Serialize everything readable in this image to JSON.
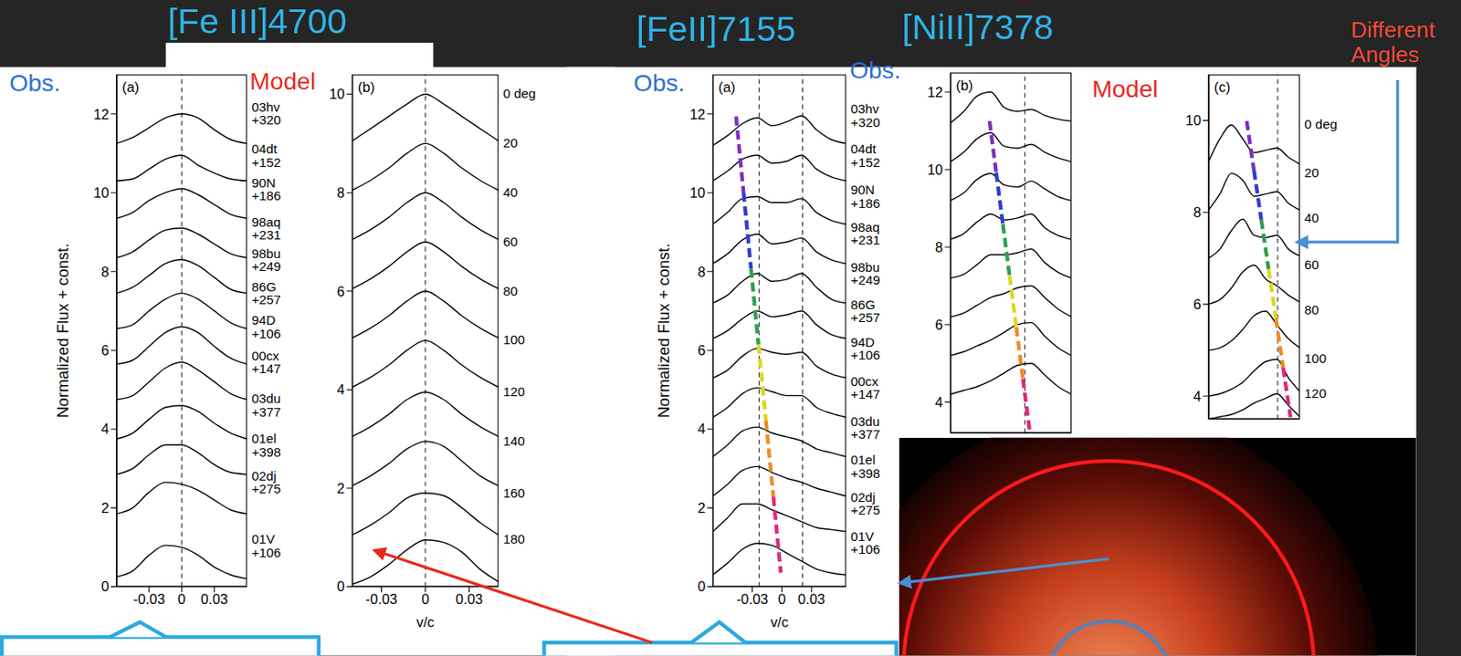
{
  "slide": {
    "titles": [
      "[Fe III]4700",
      "[FeII]7155",
      "[NiII]7378"
    ],
    "obs": [
      "Obs.",
      "Obs.",
      "Obs."
    ],
    "model": [
      "Model",
      "Model"
    ],
    "note": "Different Angles"
  },
  "chart_data": [
    {
      "type": "line",
      "label": "(a)",
      "ylabel": "Normalized Flux + const.",
      "color": "#000000",
      "x": [
        -0.06,
        -0.045,
        -0.03,
        -0.015,
        0,
        0.015,
        0.03,
        0.045,
        0.06
      ],
      "xlim": [
        -0.06,
        0.06
      ],
      "xticks": [
        -0.03,
        0,
        0.03
      ],
      "ylim": [
        0,
        13
      ],
      "yticks": [
        0,
        2,
        4,
        6,
        8,
        10,
        12
      ],
      "vlines": [
        0
      ],
      "series": [
        {
          "name": "03hv",
          "phase": "+320",
          "values": [
            11.25,
            11.4,
            11.65,
            11.9,
            12.0,
            11.9,
            11.6,
            11.35,
            11.25
          ]
        },
        {
          "name": "04dt",
          "phase": "+152",
          "values": [
            10.3,
            10.35,
            10.6,
            10.85,
            10.95,
            10.7,
            10.5,
            10.35,
            10.3
          ]
        },
        {
          "name": "90N",
          "phase": "+186",
          "values": [
            9.35,
            9.5,
            9.8,
            10.0,
            10.1,
            9.95,
            9.7,
            9.45,
            9.35
          ]
        },
        {
          "name": "98aq",
          "phase": "+231",
          "values": [
            8.35,
            8.5,
            8.8,
            9.05,
            9.1,
            8.95,
            8.7,
            8.45,
            8.35
          ]
        },
        {
          "name": "98bu",
          "phase": "+249",
          "values": [
            7.45,
            7.6,
            7.9,
            8.2,
            8.3,
            8.15,
            7.85,
            7.55,
            7.45
          ]
        },
        {
          "name": "86G",
          "phase": "+257",
          "values": [
            6.55,
            6.65,
            7.0,
            7.3,
            7.45,
            7.3,
            7.0,
            6.7,
            6.55
          ]
        },
        {
          "name": "94D",
          "phase": "+106",
          "values": [
            5.65,
            5.75,
            6.1,
            6.45,
            6.6,
            6.45,
            6.1,
            5.8,
            5.65
          ]
        },
        {
          "name": "00cx",
          "phase": "+147",
          "values": [
            4.75,
            4.85,
            5.2,
            5.55,
            5.7,
            5.5,
            5.2,
            4.9,
            4.75
          ]
        },
        {
          "name": "03du",
          "phase": "+377",
          "values": [
            3.75,
            3.9,
            4.25,
            4.55,
            4.6,
            4.45,
            4.15,
            3.9,
            3.75
          ]
        },
        {
          "name": "01el",
          "phase": "+398",
          "values": [
            2.85,
            3.0,
            3.35,
            3.6,
            3.6,
            3.4,
            3.1,
            2.9,
            2.85
          ]
        },
        {
          "name": "02dj",
          "phase": "+275",
          "values": [
            1.85,
            2.0,
            2.4,
            2.65,
            2.6,
            2.45,
            2.2,
            1.95,
            1.85
          ]
        },
        {
          "name": "01V",
          "phase": "+106",
          "values": [
            0.25,
            0.4,
            0.8,
            1.05,
            1.0,
            0.8,
            0.5,
            0.3,
            0.2
          ]
        }
      ]
    },
    {
      "type": "line",
      "label": "(b)",
      "xlabel": "v/c",
      "color": "#000000",
      "x": [
        -0.05,
        -0.0375,
        -0.025,
        -0.0125,
        0,
        0.0125,
        0.025,
        0.0375,
        0.05
      ],
      "xlim": [
        -0.05,
        0.05
      ],
      "xticks": [
        -0.03,
        0,
        0.03
      ],
      "ylim": [
        0,
        10.4
      ],
      "yticks": [
        0,
        2,
        4,
        6,
        8,
        10
      ],
      "vlines": [
        0
      ],
      "series": [
        {
          "name": "0 deg",
          "values": [
            9.05,
            9.3,
            9.55,
            9.8,
            10.0,
            9.8,
            9.55,
            9.3,
            9.05
          ]
        },
        {
          "name": "20",
          "values": [
            8.05,
            8.25,
            8.5,
            8.8,
            9.0,
            8.8,
            8.5,
            8.25,
            8.05
          ]
        },
        {
          "name": "40",
          "values": [
            7.05,
            7.25,
            7.5,
            7.8,
            8.0,
            7.8,
            7.5,
            7.25,
            7.05
          ]
        },
        {
          "name": "60",
          "values": [
            6.05,
            6.25,
            6.5,
            6.8,
            7.0,
            6.8,
            6.5,
            6.25,
            6.05
          ]
        },
        {
          "name": "80",
          "values": [
            5.05,
            5.25,
            5.5,
            5.8,
            6.0,
            5.8,
            5.5,
            5.25,
            5.05
          ]
        },
        {
          "name": "100",
          "values": [
            4.05,
            4.25,
            4.5,
            4.8,
            5.0,
            4.8,
            4.5,
            4.25,
            4.05
          ]
        },
        {
          "name": "120",
          "values": [
            3.05,
            3.25,
            3.5,
            3.8,
            3.95,
            3.8,
            3.5,
            3.25,
            3.05
          ]
        },
        {
          "name": "140",
          "values": [
            2.05,
            2.25,
            2.5,
            2.8,
            2.95,
            2.85,
            2.55,
            2.25,
            2.05
          ]
        },
        {
          "name": "160",
          "values": [
            1.05,
            1.25,
            1.5,
            1.8,
            1.9,
            1.85,
            1.6,
            1.3,
            1.05
          ]
        },
        {
          "name": "180",
          "values": [
            0.05,
            0.2,
            0.45,
            0.75,
            0.95,
            0.9,
            0.7,
            0.35,
            0.1
          ]
        }
      ]
    },
    {
      "type": "line",
      "label": "(a)",
      "ylabel": "Normalized Flux + const.",
      "xlabel": "v/c",
      "color": "#000000",
      "x": [
        -0.07,
        -0.055,
        -0.04,
        -0.025,
        -0.01,
        0.005,
        0.02,
        0.035,
        0.05,
        0.065
      ],
      "xlim": [
        -0.07,
        0.065
      ],
      "xticks": [
        -0.03,
        0,
        0.03
      ],
      "ylim": [
        0,
        13
      ],
      "yticks": [
        0,
        2,
        4,
        6,
        8,
        10,
        12
      ],
      "vlines": [
        -0.023,
        0.021
      ],
      "series": [
        {
          "name": "03hv",
          "phase": "+320",
          "values": [
            11.2,
            11.45,
            11.75,
            11.9,
            11.7,
            11.8,
            11.95,
            11.6,
            11.35,
            11.25
          ]
        },
        {
          "name": "04dt",
          "phase": "+152",
          "values": [
            10.3,
            10.55,
            10.85,
            10.95,
            10.75,
            10.8,
            10.95,
            10.6,
            10.4,
            10.3
          ]
        },
        {
          "name": "90N",
          "phase": "+186",
          "values": [
            9.2,
            9.5,
            9.85,
            9.9,
            9.75,
            9.75,
            9.85,
            9.5,
            9.3,
            9.2
          ]
        },
        {
          "name": "98aq",
          "phase": "+231",
          "values": [
            8.2,
            8.45,
            8.8,
            8.95,
            8.7,
            8.75,
            8.85,
            8.5,
            8.3,
            8.2
          ]
        },
        {
          "name": "98bu",
          "phase": "+249",
          "values": [
            7.2,
            7.4,
            7.75,
            7.95,
            7.75,
            7.8,
            7.95,
            7.6,
            7.3,
            7.2
          ]
        },
        {
          "name": "86G",
          "phase": "+257",
          "values": [
            6.3,
            6.5,
            6.8,
            7.0,
            6.85,
            6.9,
            7.0,
            6.65,
            6.4,
            6.3
          ]
        },
        {
          "name": "94D",
          "phase": "+106",
          "values": [
            5.3,
            5.5,
            5.85,
            6.05,
            5.95,
            5.9,
            5.95,
            5.6,
            5.4,
            5.3
          ]
        },
        {
          "name": "00cx",
          "phase": "+147",
          "values": [
            4.3,
            4.55,
            4.9,
            5.05,
            4.95,
            4.85,
            4.85,
            4.55,
            4.4,
            4.3
          ]
        },
        {
          "name": "03du",
          "phase": "+377",
          "values": [
            3.3,
            3.6,
            3.95,
            4.05,
            3.9,
            3.8,
            3.7,
            3.5,
            3.4,
            3.3
          ]
        },
        {
          "name": "01el",
          "phase": "+398",
          "values": [
            2.3,
            2.6,
            2.95,
            3.05,
            2.9,
            2.75,
            2.65,
            2.5,
            2.4,
            2.3
          ]
        },
        {
          "name": "02dj",
          "phase": "+275",
          "values": [
            1.4,
            1.75,
            2.1,
            2.1,
            1.95,
            1.8,
            1.65,
            1.5,
            1.45,
            1.4
          ]
        },
        {
          "name": "01V",
          "phase": "+106",
          "values": [
            0.3,
            0.6,
            0.95,
            1.1,
            1.05,
            0.85,
            0.65,
            0.45,
            0.35,
            0.3
          ]
        }
      ]
    },
    {
      "type": "line",
      "label": "(b)",
      "color": "#000000",
      "tick_labels": "y",
      "x": [
        -0.07,
        -0.055,
        -0.04,
        -0.025,
        -0.01,
        0.005,
        0.02,
        0.035,
        0.05,
        0.065
      ],
      "xlim": [
        -0.07,
        0.065
      ],
      "ylim": [
        3.2,
        12.5
      ],
      "yticks": [
        4,
        6,
        8,
        10,
        12
      ],
      "vlines": [
        0.013
      ],
      "series": [
        {
          "values": [
            11.2,
            11.5,
            11.9,
            12.0,
            11.6,
            11.5,
            11.55,
            11.4,
            11.3,
            11.25
          ]
        },
        {
          "values": [
            10.2,
            10.45,
            10.8,
            10.95,
            10.6,
            10.55,
            10.65,
            10.45,
            10.3,
            10.2
          ]
        },
        {
          "values": [
            9.2,
            9.4,
            9.75,
            9.9,
            9.6,
            9.55,
            9.7,
            9.5,
            9.3,
            9.2
          ]
        },
        {
          "values": [
            8.2,
            8.35,
            8.65,
            8.85,
            8.7,
            8.75,
            8.85,
            8.5,
            8.3,
            8.2
          ]
        },
        {
          "values": [
            7.2,
            7.3,
            7.55,
            7.8,
            7.8,
            7.85,
            7.95,
            7.6,
            7.35,
            7.2
          ]
        },
        {
          "values": [
            6.2,
            6.3,
            6.5,
            6.7,
            6.8,
            6.95,
            7.0,
            6.7,
            6.4,
            6.2
          ]
        },
        {
          "values": [
            5.2,
            5.3,
            5.45,
            5.6,
            5.8,
            6.0,
            6.05,
            5.7,
            5.4,
            5.2
          ]
        },
        {
          "values": [
            4.2,
            4.3,
            4.4,
            4.55,
            4.75,
            4.95,
            5.0,
            4.7,
            4.4,
            4.2
          ]
        }
      ]
    },
    {
      "type": "line",
      "label": "(c)",
      "color": "#000000",
      "tick_labels": "y",
      "x": [
        -0.07,
        -0.055,
        -0.04,
        -0.025,
        -0.01,
        0.005,
        0.02,
        0.035,
        0.05
      ],
      "xlim": [
        -0.07,
        0.05
      ],
      "ylim": [
        3.5,
        11
      ],
      "yticks": [
        4,
        6,
        8,
        10
      ],
      "vlines": [
        0.021
      ],
      "series": [
        {
          "name": "0 deg",
          "values": [
            9.1,
            9.6,
            9.9,
            9.6,
            9.3,
            9.35,
            9.4,
            9.2,
            9.05
          ]
        },
        {
          "name": "20",
          "values": [
            8.05,
            8.4,
            8.85,
            8.7,
            8.35,
            8.4,
            8.45,
            8.2,
            8.05
          ]
        },
        {
          "name": "40",
          "values": [
            7.0,
            7.2,
            7.6,
            7.85,
            7.5,
            7.45,
            7.5,
            7.2,
            7.05
          ]
        },
        {
          "name": "60",
          "values": [
            6.0,
            6.1,
            6.35,
            6.7,
            6.85,
            6.55,
            6.4,
            6.2,
            6.05
          ]
        },
        {
          "name": "80",
          "values": [
            5.0,
            5.05,
            5.2,
            5.45,
            5.75,
            5.85,
            5.55,
            5.25,
            5.05
          ]
        },
        {
          "name": "100",
          "values": [
            4.0,
            4.05,
            4.15,
            4.3,
            4.55,
            4.75,
            4.8,
            4.4,
            4.1
          ]
        },
        {
          "name": "120",
          "values": [
            3.5,
            3.55,
            3.6,
            3.7,
            3.85,
            3.95,
            4.05,
            3.8,
            3.55
          ]
        }
      ]
    }
  ]
}
